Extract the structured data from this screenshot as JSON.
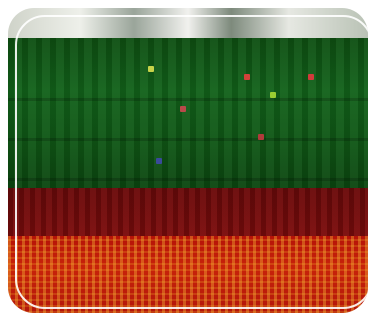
{
  "photo": {
    "icon": "photo-image"
  },
  "colors": {
    "top": "#dfe2da",
    "green": "#12621a",
    "dark_red": "#7c0c0c",
    "red": "#c8230a",
    "highlight": "#f3b82a"
  }
}
